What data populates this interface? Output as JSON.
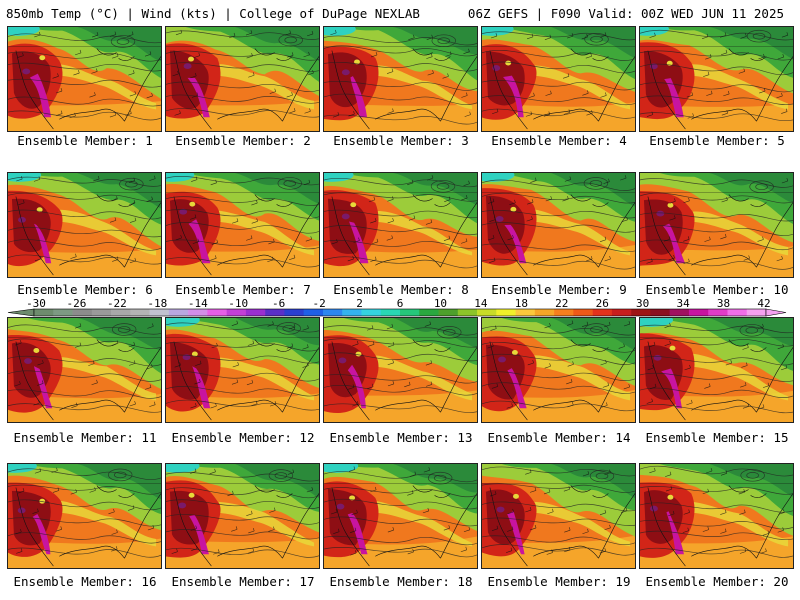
{
  "header": {
    "left": "850mb Temp (°C) | Wind (kts) | College of DuPage NEXLAB",
    "right": "06Z GEFS | F090 Valid: 00Z WED JUN 11 2025"
  },
  "panels": [
    {
      "caption": "Ensemble Member: 1",
      "icon": "temperature-map"
    },
    {
      "caption": "Ensemble Member: 2",
      "icon": "temperature-map"
    },
    {
      "caption": "Ensemble Member: 3",
      "icon": "temperature-map"
    },
    {
      "caption": "Ensemble Member: 4",
      "icon": "temperature-map"
    },
    {
      "caption": "Ensemble Member: 5",
      "icon": "temperature-map"
    },
    {
      "caption": "Ensemble Member: 6",
      "icon": "temperature-map"
    },
    {
      "caption": "Ensemble Member: 7",
      "icon": "temperature-map"
    },
    {
      "caption": "Ensemble Member: 8",
      "icon": "temperature-map"
    },
    {
      "caption": "Ensemble Member: 9",
      "icon": "temperature-map"
    },
    {
      "caption": "Ensemble Member: 10",
      "icon": "temperature-map"
    },
    {
      "caption": "Ensemble Member: 11",
      "icon": "temperature-map"
    },
    {
      "caption": "Ensemble Member: 12",
      "icon": "temperature-map"
    },
    {
      "caption": "Ensemble Member: 13",
      "icon": "temperature-map"
    },
    {
      "caption": "Ensemble Member: 14",
      "icon": "temperature-map"
    },
    {
      "caption": "Ensemble Member: 15",
      "icon": "temperature-map"
    },
    {
      "caption": "Ensemble Member: 16",
      "icon": "temperature-map"
    },
    {
      "caption": "Ensemble Member: 17",
      "icon": "temperature-map"
    },
    {
      "caption": "Ensemble Member: 18",
      "icon": "temperature-map"
    },
    {
      "caption": "Ensemble Member: 19",
      "icon": "temperature-map"
    },
    {
      "caption": "Ensemble Member: 20",
      "icon": "temperature-map"
    }
  ],
  "colorbar": {
    "labels": [
      "-30",
      "-26",
      "-22",
      "-18",
      "-14",
      "-10",
      "-6",
      "-2",
      "2",
      "6",
      "10",
      "14",
      "18",
      "22",
      "26",
      "30",
      "34",
      "38",
      "42"
    ],
    "colors": [
      "#6e8c6e",
      "#7d9a83",
      "#8c8c8c",
      "#9a9a9a",
      "#a8a8a8",
      "#b4b4b4",
      "#c2c2d0",
      "#b9a7e0",
      "#d38ee8",
      "#e65fe6",
      "#c23fd6",
      "#9a2fd0",
      "#5a2fc8",
      "#2b3fd0",
      "#1f5fe6",
      "#2d87f0",
      "#34b3f0",
      "#34d3e0",
      "#29d8b4",
      "#26c77a",
      "#2aa83f",
      "#4ea02c",
      "#8cc42a",
      "#c8dc28",
      "#f0f02a",
      "#fac83c",
      "#f5a628",
      "#f57f1e",
      "#ee5a18",
      "#e3321c",
      "#c81e1e",
      "#9e1414",
      "#8a1020",
      "#a01060",
      "#c814a0",
      "#e03cc8",
      "#f06ee8",
      "#f5a0f0"
    ]
  },
  "map_colors": {
    "hot": "#8e0e14",
    "warm_red": "#d22518",
    "orange": "#f0781e",
    "amber": "#f5a52a",
    "yellow": "#e8d83a",
    "light_green": "#9ccc3a",
    "green": "#3fa83a",
    "dark_green": "#2b8a3a",
    "cyan": "#2fd2c0",
    "magenta": "#c814a0",
    "purple": "#7a1a6a"
  }
}
